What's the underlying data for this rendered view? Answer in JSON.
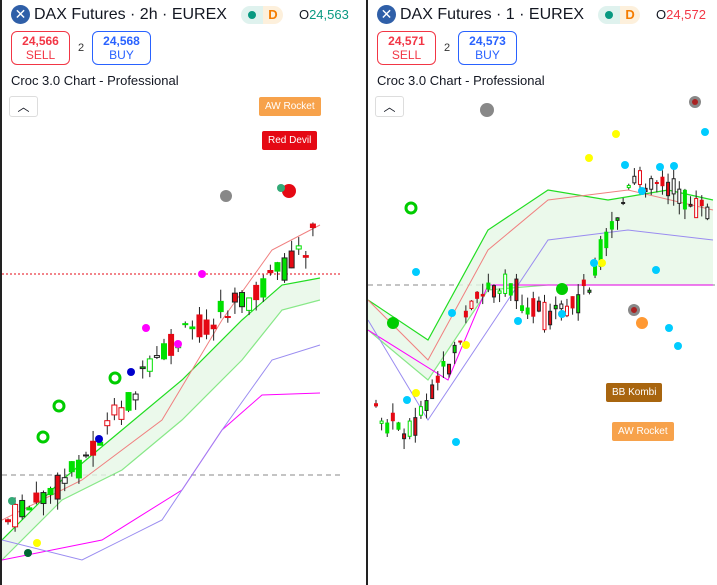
{
  "panels": [
    {
      "symbol": "DAX Futures · 2h · EUREX",
      "open_label": "O",
      "open_value": "24,563",
      "sell_price": "24,566",
      "sell_label": "SELL",
      "spread": "2",
      "buy_price": "24,568",
      "buy_label": "BUY",
      "indicator": "Croc 3.0 Chart - Professional",
      "session": "D",
      "labels": [
        {
          "text": "AW Rocket",
          "color": "#f7a24b"
        },
        {
          "text": "Red Devil",
          "color": "#e50914"
        }
      ]
    },
    {
      "symbol": "DAX Futures · 1 · EUREX",
      "open_label": "O",
      "open_value": "24,572",
      "sell_price": "24,571",
      "sell_label": "SELL",
      "spread": "2",
      "buy_price": "24,573",
      "buy_label": "BUY",
      "indicator": "Croc 3.0 Chart - Professional",
      "session": "D",
      "labels": [
        {
          "text": "BB Kombi",
          "color": "#a8650f"
        },
        {
          "text": "AW Rocket",
          "color": "#f7a24b"
        }
      ]
    }
  ],
  "colors": {
    "up": "#00e000",
    "down": "#e50914",
    "sell": "#f23645",
    "buy": "#2962ff"
  }
}
